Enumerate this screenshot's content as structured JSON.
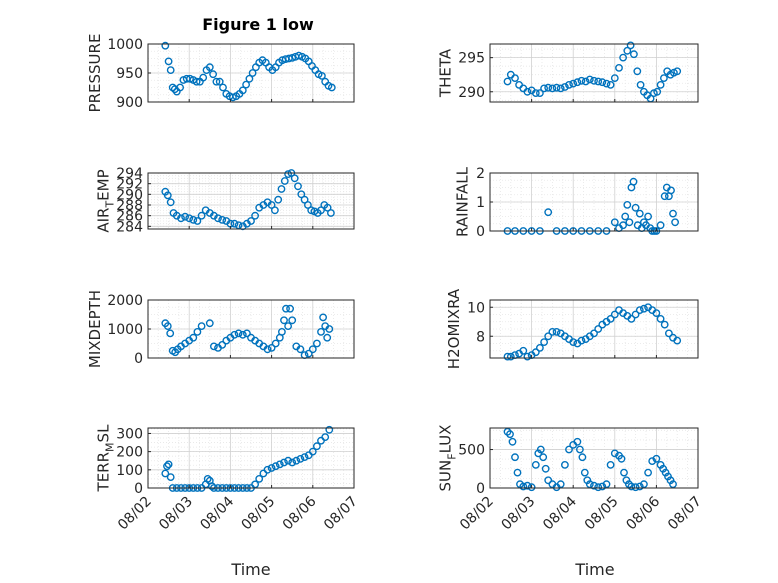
{
  "title": "Figure 1 low",
  "colors": {
    "marker": "#0072BD",
    "axis": "#262626",
    "grid": "#d0d0d0",
    "minor_grid": "#e6e6e6"
  },
  "chart_data": [
    {
      "type": "scatter",
      "ylabel": "PRESSURE",
      "ylim": [
        900,
        1000
      ],
      "yticks": [
        "900",
        "950",
        "1000"
      ],
      "grid": true,
      "x": [
        0.42,
        0.5,
        0.55,
        0.6,
        0.65,
        0.7,
        0.78,
        0.86,
        0.94,
        1.02,
        1.1,
        1.18,
        1.26,
        1.34,
        1.42,
        1.5,
        1.58,
        1.66,
        1.74,
        1.82,
        1.9,
        1.98,
        2.06,
        2.14,
        2.22,
        2.3,
        2.38,
        2.46,
        2.54,
        2.62,
        2.7,
        2.78,
        2.86,
        2.94,
        3.02,
        3.1,
        3.18,
        3.26,
        3.34,
        3.42,
        3.5,
        3.58,
        3.66,
        3.74,
        3.82,
        3.9,
        3.98,
        4.06,
        4.14,
        4.22,
        4.3,
        4.38,
        4.46
      ],
      "y": [
        997,
        970,
        955,
        925,
        922,
        918,
        925,
        938,
        940,
        940,
        938,
        935,
        935,
        942,
        955,
        960,
        948,
        935,
        935,
        925,
        914,
        910,
        908,
        910,
        914,
        920,
        930,
        940,
        950,
        960,
        968,
        972,
        968,
        960,
        955,
        960,
        968,
        972,
        974,
        975,
        976,
        978,
        980,
        978,
        975,
        970,
        962,
        955,
        948,
        945,
        935,
        928,
        925
      ]
    },
    {
      "type": "scatter",
      "ylabel": "THETA",
      "ylim": [
        288.5,
        297
      ],
      "yticks": [
        "290",
        "295"
      ],
      "grid": true,
      "x": [
        0.42,
        0.5,
        0.6,
        0.7,
        0.8,
        0.9,
        1.0,
        1.1,
        1.2,
        1.3,
        1.4,
        1.5,
        1.6,
        1.7,
        1.8,
        1.9,
        2.0,
        2.1,
        2.2,
        2.3,
        2.4,
        2.5,
        2.6,
        2.7,
        2.8,
        2.9,
        3.0,
        3.1,
        3.2,
        3.3,
        3.38,
        3.46,
        3.54,
        3.62,
        3.7,
        3.78,
        3.86,
        3.94,
        4.02,
        4.1,
        4.18,
        4.26,
        4.34,
        4.42,
        4.5
      ],
      "y": [
        291.5,
        292.5,
        292.0,
        291.0,
        290.5,
        290.0,
        290.2,
        289.8,
        289.8,
        290.5,
        290.6,
        290.5,
        290.6,
        290.5,
        290.7,
        291.0,
        291.2,
        291.4,
        291.6,
        291.5,
        291.8,
        291.6,
        291.5,
        291.4,
        291.2,
        291.0,
        292.0,
        293.5,
        295.0,
        296.0,
        296.8,
        295.5,
        293.0,
        291.0,
        290.0,
        289.5,
        289.0,
        289.8,
        290.0,
        291.0,
        292.0,
        293.0,
        292.5,
        292.8,
        293.0
      ]
    },
    {
      "type": "scatter",
      "ylabel": "AIR_TEMP",
      "ylim": [
        283.5,
        294
      ],
      "yticks": [
        "284",
        "286",
        "288",
        "290",
        "292",
        "294"
      ],
      "grid": true,
      "x": [
        0.42,
        0.48,
        0.55,
        0.62,
        0.7,
        0.8,
        0.9,
        1.0,
        1.1,
        1.2,
        1.3,
        1.4,
        1.5,
        1.6,
        1.7,
        1.8,
        1.9,
        2.0,
        2.1,
        2.2,
        2.3,
        2.4,
        2.5,
        2.6,
        2.7,
        2.8,
        2.9,
        3.0,
        3.08,
        3.16,
        3.24,
        3.32,
        3.4,
        3.48,
        3.56,
        3.64,
        3.72,
        3.8,
        3.88,
        3.96,
        4.04,
        4.12,
        4.2,
        4.28,
        4.36,
        4.44
      ],
      "y": [
        290.5,
        289.8,
        288.5,
        286.5,
        286.0,
        285.5,
        285.8,
        285.5,
        285.2,
        285.0,
        286.0,
        287.0,
        286.5,
        286.0,
        285.5,
        285.2,
        285.0,
        284.5,
        284.5,
        284.2,
        284.0,
        284.5,
        285.0,
        286.0,
        287.5,
        288.0,
        288.5,
        288.0,
        287.0,
        289.0,
        291.0,
        292.5,
        293.8,
        294.0,
        293.0,
        291.5,
        290.0,
        289.0,
        288.0,
        287.0,
        286.8,
        286.5,
        287.0,
        288.0,
        287.5,
        286.5
      ]
    },
    {
      "type": "scatter",
      "ylabel": "RAINFALL",
      "ylim": [
        0,
        2
      ],
      "yticks": [
        "0",
        "1",
        "2"
      ],
      "grid": true,
      "x": [
        0.42,
        0.6,
        0.8,
        1.0,
        1.2,
        1.4,
        1.6,
        1.8,
        2.0,
        2.2,
        2.4,
        2.6,
        2.8,
        3.0,
        3.1,
        3.2,
        3.25,
        3.3,
        3.35,
        3.4,
        3.45,
        3.5,
        3.55,
        3.6,
        3.65,
        3.7,
        3.75,
        3.8,
        3.85,
        3.9,
        3.95,
        4.0,
        4.1,
        4.2,
        4.25,
        4.3,
        4.35,
        4.4,
        4.45
      ],
      "y": [
        0,
        0,
        0,
        0,
        0,
        0.65,
        0,
        0,
        0,
        0,
        0,
        0,
        0,
        0.3,
        0.1,
        0.2,
        0.5,
        0.9,
        0.3,
        1.5,
        1.7,
        0.8,
        0.2,
        0.6,
        0.1,
        0.3,
        0.2,
        0.5,
        0.1,
        0,
        0,
        0,
        0.2,
        1.2,
        1.5,
        1.2,
        1.4,
        0.6,
        0.3
      ]
    },
    {
      "type": "scatter",
      "ylabel": "MIXDEPTH",
      "ylim": [
        0,
        2000
      ],
      "yticks": [
        "0",
        "1000",
        "2000"
      ],
      "grid": true,
      "x": [
        0.42,
        0.48,
        0.54,
        0.6,
        0.66,
        0.72,
        0.8,
        0.9,
        1.0,
        1.1,
        1.2,
        1.3,
        1.5,
        1.6,
        1.7,
        1.8,
        1.9,
        2.0,
        2.1,
        2.2,
        2.3,
        2.4,
        2.5,
        2.6,
        2.7,
        2.8,
        2.9,
        3.0,
        3.1,
        3.2,
        3.25,
        3.3,
        3.35,
        3.4,
        3.45,
        3.5,
        3.6,
        3.7,
        3.8,
        3.9,
        4.0,
        4.1,
        4.2,
        4.25,
        4.3,
        4.35,
        4.4
      ],
      "y": [
        1200,
        1100,
        850,
        250,
        200,
        300,
        400,
        500,
        600,
        700,
        900,
        1100,
        1200,
        400,
        350,
        450,
        600,
        700,
        800,
        850,
        800,
        850,
        700,
        600,
        500,
        400,
        300,
        350,
        500,
        700,
        900,
        1300,
        1700,
        1100,
        1700,
        1300,
        400,
        300,
        100,
        150,
        300,
        500,
        900,
        1400,
        1100,
        700,
        1000
      ]
    },
    {
      "type": "scatter",
      "ylabel": "H2OMIXRA",
      "ylim": [
        6.5,
        10.5
      ],
      "yticks": [
        "8",
        "10"
      ],
      "grid": true,
      "x": [
        0.42,
        0.5,
        0.6,
        0.7,
        0.8,
        0.9,
        1.0,
        1.1,
        1.2,
        1.3,
        1.4,
        1.5,
        1.6,
        1.7,
        1.8,
        1.9,
        2.0,
        2.1,
        2.2,
        2.3,
        2.4,
        2.5,
        2.6,
        2.7,
        2.8,
        2.9,
        3.0,
        3.1,
        3.2,
        3.3,
        3.4,
        3.5,
        3.6,
        3.7,
        3.8,
        3.9,
        4.0,
        4.1,
        4.2,
        4.3,
        4.4,
        4.5
      ],
      "y": [
        6.6,
        6.6,
        6.7,
        6.8,
        7.0,
        6.6,
        6.7,
        6.9,
        7.2,
        7.6,
        8.0,
        8.3,
        8.3,
        8.2,
        8.0,
        7.8,
        7.6,
        7.5,
        7.7,
        7.8,
        8.0,
        8.2,
        8.5,
        8.8,
        9.0,
        9.2,
        9.5,
        9.8,
        9.6,
        9.4,
        9.2,
        9.5,
        9.8,
        9.9,
        10.0,
        9.8,
        9.6,
        9.2,
        8.8,
        8.2,
        7.9,
        7.7
      ]
    },
    {
      "type": "scatter",
      "ylabel": "TERR_MSL",
      "ylim": [
        0,
        330
      ],
      "yticks": [
        "0",
        "100",
        "200",
        "300"
      ],
      "grid": true,
      "x": [
        0.42,
        0.46,
        0.5,
        0.55,
        0.6,
        0.7,
        0.8,
        0.9,
        1.0,
        1.1,
        1.2,
        1.3,
        1.4,
        1.45,
        1.5,
        1.55,
        1.6,
        1.7,
        1.8,
        1.9,
        2.0,
        2.1,
        2.2,
        2.3,
        2.4,
        2.5,
        2.6,
        2.7,
        2.8,
        2.9,
        3.0,
        3.1,
        3.2,
        3.3,
        3.4,
        3.5,
        3.6,
        3.7,
        3.8,
        3.9,
        4.0,
        4.1,
        4.2,
        4.3,
        4.4
      ],
      "y": [
        80,
        120,
        130,
        60,
        0,
        0,
        0,
        0,
        0,
        0,
        0,
        0,
        20,
        50,
        40,
        10,
        0,
        0,
        0,
        0,
        0,
        0,
        0,
        0,
        0,
        0,
        20,
        50,
        80,
        100,
        110,
        120,
        130,
        140,
        150,
        140,
        150,
        160,
        170,
        180,
        200,
        230,
        260,
        280,
        320
      ]
    },
    {
      "type": "scatter",
      "ylabel": "SUN_FLUX",
      "ylim": [
        0,
        780
      ],
      "yticks": [
        "0",
        "500"
      ],
      "grid": true,
      "x": [
        0.42,
        0.48,
        0.54,
        0.6,
        0.66,
        0.72,
        0.8,
        0.9,
        1.0,
        1.1,
        1.16,
        1.22,
        1.28,
        1.34,
        1.4,
        1.5,
        1.6,
        1.7,
        1.8,
        1.9,
        2.0,
        2.1,
        2.16,
        2.22,
        2.28,
        2.34,
        2.4,
        2.5,
        2.6,
        2.7,
        2.8,
        2.9,
        3.0,
        3.1,
        3.16,
        3.22,
        3.28,
        3.34,
        3.4,
        3.5,
        3.6,
        3.7,
        3.8,
        3.9,
        4.0,
        4.1,
        4.16,
        4.22,
        4.28,
        4.34,
        4.4
      ],
      "y": [
        730,
        700,
        600,
        400,
        200,
        50,
        20,
        30,
        10,
        300,
        450,
        500,
        400,
        250,
        100,
        50,
        10,
        50,
        300,
        500,
        560,
        600,
        500,
        400,
        200,
        100,
        50,
        30,
        10,
        20,
        50,
        300,
        450,
        420,
        380,
        200,
        100,
        50,
        20,
        10,
        20,
        50,
        200,
        350,
        380,
        300,
        250,
        200,
        150,
        100,
        50
      ]
    }
  ],
  "x_axis": {
    "label": "Time",
    "ticks": [
      "08/02",
      "08/03",
      "08/04",
      "08/05",
      "08/06",
      "08/07"
    ]
  }
}
